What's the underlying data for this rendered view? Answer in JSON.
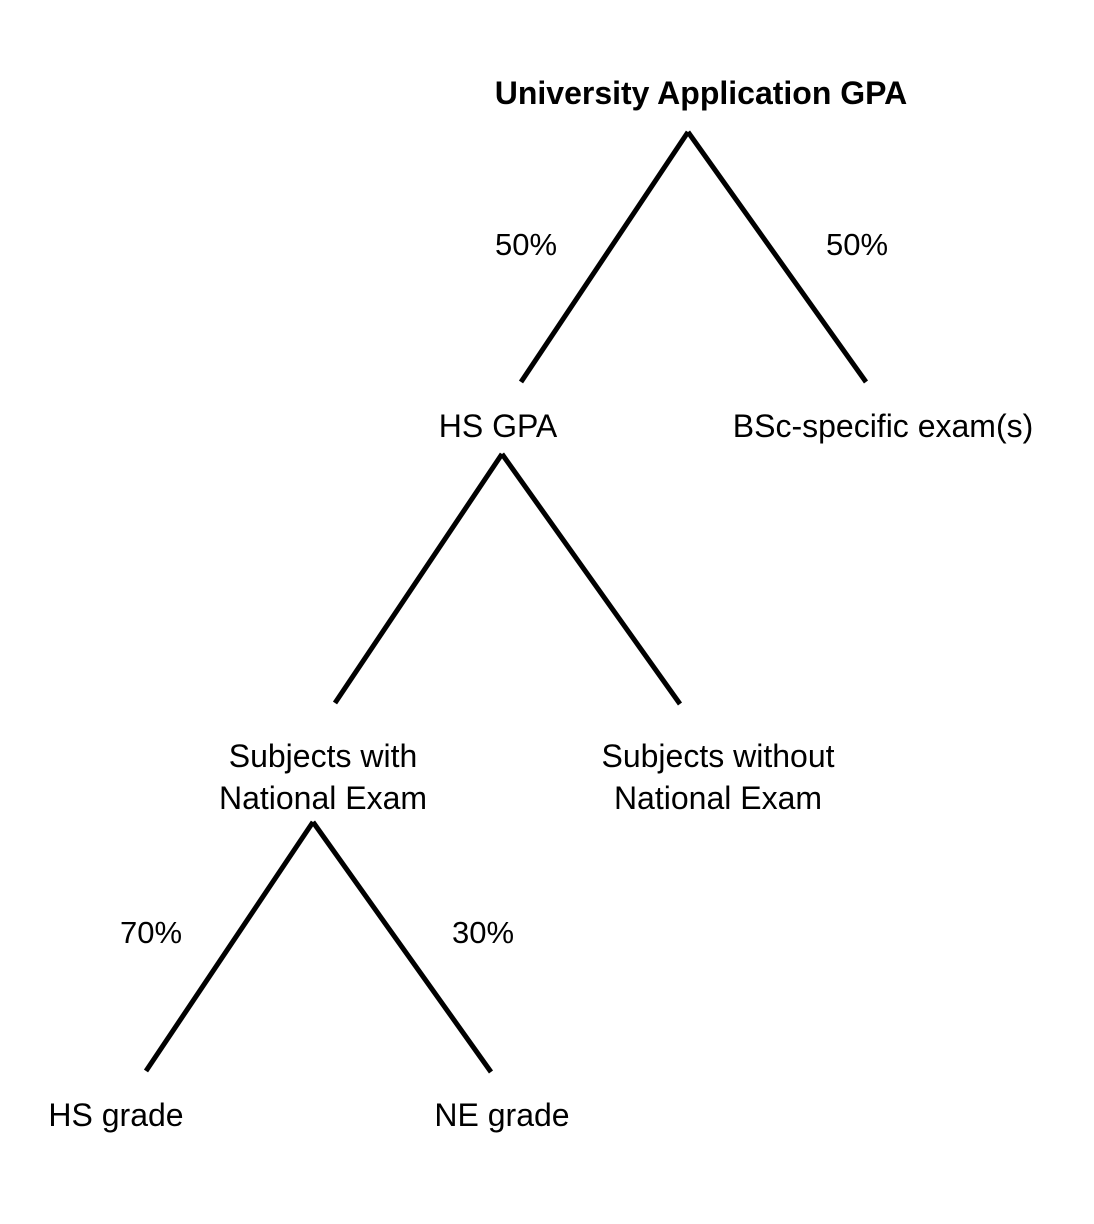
{
  "diagram": {
    "type": "tree",
    "colors": {
      "background": "#ffffff",
      "lines": "#000000",
      "text": "#000000"
    },
    "root": {
      "label": "University Application GPA"
    },
    "nodes": {
      "hs_gpa": {
        "label": "HS GPA"
      },
      "bsc_exam": {
        "label": "BSc-specific exam(s)"
      },
      "subjects_with_ne": {
        "label_line1": "Subjects with",
        "label_line2": "National Exam"
      },
      "subjects_without_ne": {
        "label_line1": "Subjects without",
        "label_line2": "National Exam"
      },
      "hs_grade": {
        "label": "HS grade"
      },
      "ne_grade": {
        "label": "NE grade"
      }
    },
    "weights": {
      "root_to_hs_gpa": "50%",
      "root_to_bsc_exam": "50%",
      "with_ne_to_hs_grade": "70%",
      "with_ne_to_ne_grade": "30%"
    }
  }
}
